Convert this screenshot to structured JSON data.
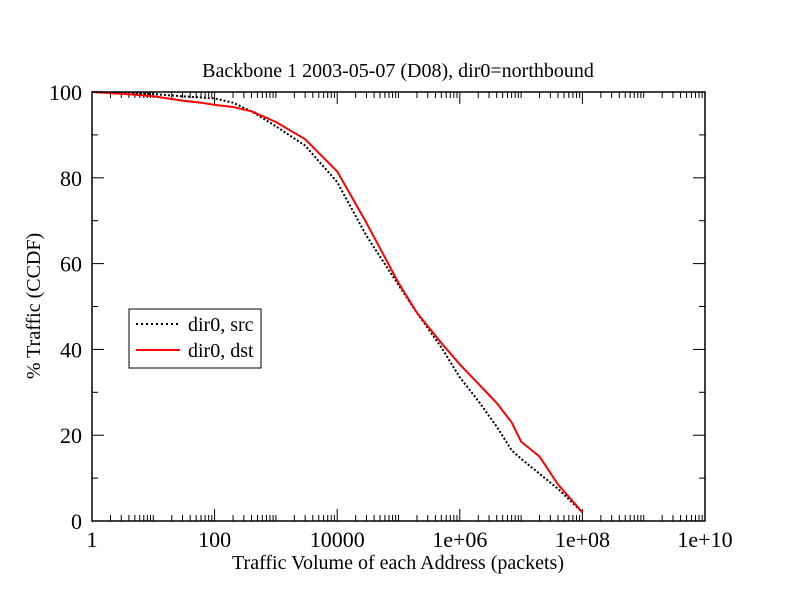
{
  "chart_data": {
    "type": "line",
    "title": "Backbone 1 2003-05-07 (D08), dir0=northbound",
    "xlabel": "Traffic Volume of each Address (packets)",
    "ylabel": "% Traffic (CCDF)",
    "x_scale": "log",
    "xlim": [
      1,
      10000000000
    ],
    "ylim": [
      0,
      100
    ],
    "x_ticks": [
      1,
      100,
      10000,
      1000000,
      100000000,
      10000000000
    ],
    "x_tick_labels": [
      "1",
      "100",
      "10000",
      "1e+06",
      "1e+08",
      "1e+10"
    ],
    "y_ticks": [
      0,
      20,
      40,
      60,
      80,
      100
    ],
    "y_tick_labels": [
      "0",
      "20",
      "40",
      "60",
      "80",
      "100"
    ],
    "grid": false,
    "legend_position": "middle-left",
    "series": [
      {
        "name": "dir0, src",
        "color": "#000000",
        "style": "dotted",
        "x": [
          1,
          3,
          10,
          30,
          100,
          200,
          400,
          1000,
          3000,
          10000,
          30000,
          100000,
          200000,
          500000,
          1000000,
          2000000,
          4000000,
          7000000,
          10000000,
          20000000,
          40000000,
          100000000
        ],
        "y": [
          100,
          99.8,
          99.5,
          99,
          98.5,
          97.5,
          95.5,
          92,
          87.5,
          79,
          66.5,
          55,
          48.5,
          40.5,
          33.5,
          28,
          22,
          16.5,
          14.5,
          11,
          7.5,
          2
        ]
      },
      {
        "name": "dir0, dst",
        "color": "#ff0000",
        "style": "solid",
        "x": [
          1,
          3,
          10,
          30,
          60,
          100,
          200,
          400,
          1000,
          3000,
          10000,
          30000,
          100000,
          200000,
          500000,
          1000000,
          2000000,
          4000000,
          7000000,
          10000000,
          20000000,
          40000000,
          100000000
        ],
        "y": [
          100,
          99.6,
          99,
          98,
          97.5,
          97,
          96.5,
          95.5,
          93,
          89,
          81.5,
          69.5,
          55.5,
          48.5,
          41.5,
          36.5,
          32,
          27.5,
          23,
          18.5,
          15,
          8.5,
          2
        ]
      }
    ]
  }
}
